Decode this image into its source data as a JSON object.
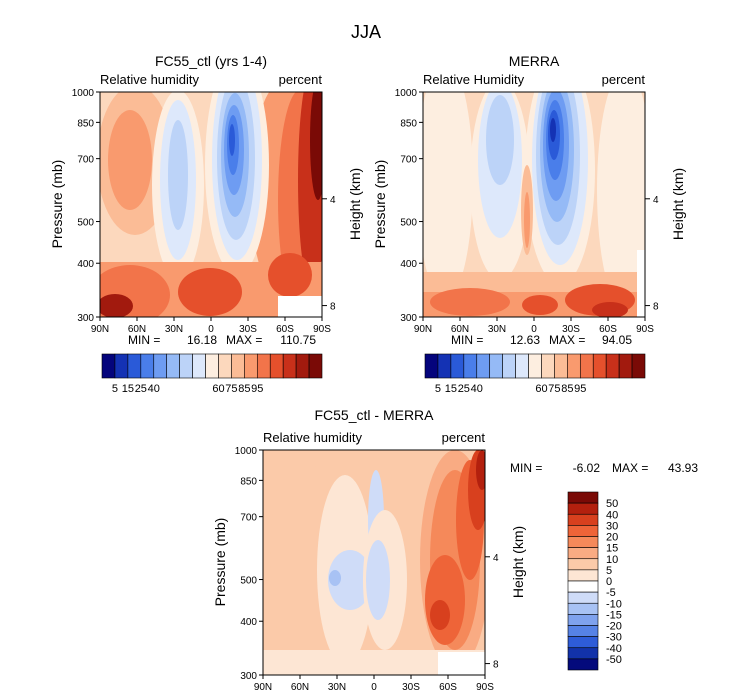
{
  "figure_title": "JJA",
  "chart_data": [
    {
      "type": "heatmap",
      "title": "FC55_ctl (yrs 1-4)",
      "left_label": "Relative humidity",
      "right_label": "percent",
      "ylabel": "Pressure (mb)",
      "ylabel_right": "Height (km)",
      "x_ticks": [
        "90N",
        "60N",
        "30N",
        "0",
        "30S",
        "60S",
        "90S"
      ],
      "y_ticks": [
        "300",
        "400",
        "500",
        "700",
        "850",
        "1000"
      ],
      "height_ticks": [
        "8",
        "4"
      ],
      "ylim": [
        1000,
        300
      ],
      "stats": {
        "min_label": "MIN =",
        "min": "16.18",
        "max_label": "MAX =",
        "max": "110.75"
      },
      "colorbar": {
        "orientation": "horizontal",
        "labels": [
          "5",
          "15",
          "25",
          "40",
          "60",
          "75",
          "85",
          "95"
        ],
        "colors": [
          "#04047c",
          "#1432b4",
          "#2a5ad8",
          "#4a7eea",
          "#6e9cf2",
          "#95baf6",
          "#bcd3f8",
          "#dde8fb",
          "#fdeee0",
          "#fcd8bd",
          "#fbbc96",
          "#f99a6e",
          "#f2744a",
          "#e5502c",
          "#c8301a",
          "#a21a0e",
          "#7a0a06"
        ]
      }
    },
    {
      "type": "heatmap",
      "title": "MERRA",
      "left_label": "Relative Humidity",
      "right_label": "percent",
      "ylabel": "Pressure (mb)",
      "ylabel_right": "Height (km)",
      "x_ticks": [
        "90N",
        "60N",
        "30N",
        "0",
        "30S",
        "60S",
        "90S"
      ],
      "y_ticks": [
        "300",
        "400",
        "500",
        "700",
        "850",
        "1000"
      ],
      "height_ticks": [
        "8",
        "4"
      ],
      "ylim": [
        1000,
        300
      ],
      "stats": {
        "min_label": "MIN =",
        "min": "12.63",
        "max_label": "MAX =",
        "max": "94.05"
      },
      "colorbar": {
        "orientation": "horizontal",
        "labels": [
          "5",
          "15",
          "25",
          "40",
          "60",
          "75",
          "85",
          "95"
        ],
        "colors": [
          "#04047c",
          "#1432b4",
          "#2a5ad8",
          "#4a7eea",
          "#6e9cf2",
          "#95baf6",
          "#bcd3f8",
          "#dde8fb",
          "#fdeee0",
          "#fcd8bd",
          "#fbbc96",
          "#f99a6e",
          "#f2744a",
          "#e5502c",
          "#c8301a",
          "#a21a0e",
          "#7a0a06"
        ]
      }
    },
    {
      "type": "heatmap",
      "title": "FC55_ctl - MERRA",
      "left_label": "Relative humidity",
      "right_label": "percent",
      "ylabel": "Pressure (mb)",
      "ylabel_right": "Height (km)",
      "x_ticks": [
        "90N",
        "60N",
        "30N",
        "0",
        "30S",
        "60S",
        "90S"
      ],
      "y_ticks": [
        "300",
        "400",
        "500",
        "700",
        "850",
        "1000"
      ],
      "height_ticks": [
        "8",
        "4"
      ],
      "ylim": [
        1000,
        300
      ],
      "stats": {
        "min_label": "MIN =",
        "min": "-6.02",
        "max_label": "MAX =",
        "max": "43.93"
      },
      "colorbar": {
        "orientation": "vertical",
        "labels": [
          "50",
          "40",
          "30",
          "20",
          "15",
          "10",
          "5",
          "0",
          "-5",
          "-10",
          "-15",
          "-20",
          "-30",
          "-40",
          "-50"
        ],
        "colors": [
          "#7a0a06",
          "#b3200e",
          "#d8401e",
          "#ee6438",
          "#f5895a",
          "#f9ab83",
          "#fbcaa9",
          "#fde6d4",
          "#ffffff",
          "#cfdcf8",
          "#a8c2f4",
          "#7fa2ee",
          "#5682e6",
          "#2e5cd8",
          "#1232aa",
          "#040a7c"
        ]
      }
    }
  ]
}
